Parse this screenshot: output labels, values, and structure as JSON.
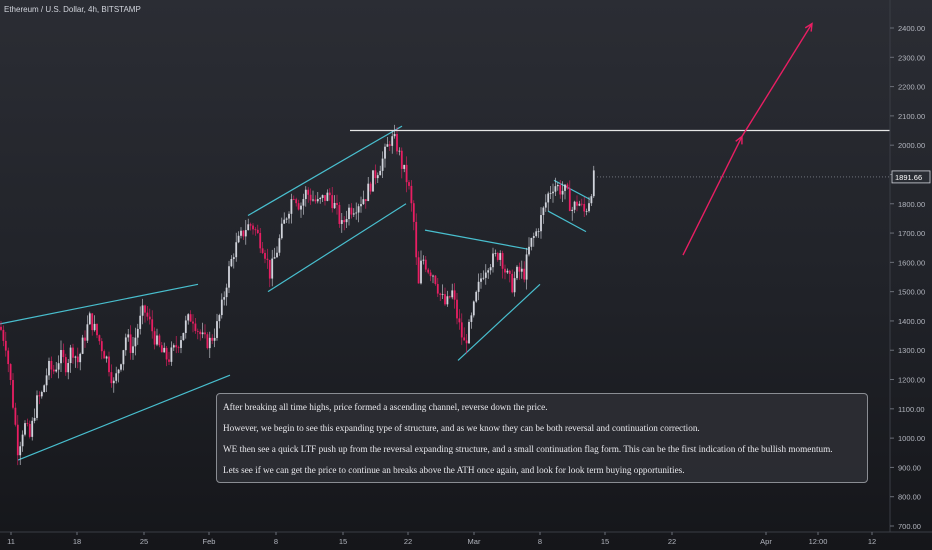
{
  "header": {
    "symbol": "Ethereum / U.S. Dollar, 4h, BITSTAMP"
  },
  "note": {
    "lines": [
      "After breaking all time highs, price formed a ascending channel, reverse down the price.",
      "However, we begin to see this expanding type of structure, and as we know they can be both reversal and continuation correction.",
      "WE then see a quick LTF push up from the reversal expanding structure, and a small continuation flag form. This can be the first indication of the bullish momentum.",
      "Lets see if we can get the price to continue an breaks above the ATH once again, and look for look term buying opportunities."
    ]
  },
  "colors": {
    "up": "#d1d4dc",
    "down": "#e91e63",
    "trendline": "#4dd0e1",
    "resistance": "#e6e6e6",
    "arrow": "#e91e63",
    "axis_text": "#b2b5be"
  },
  "chart_data": {
    "type": "candlestick",
    "title": "Ethereum / U.S. Dollar, 4h, BITSTAMP",
    "y_ticks": [
      "2400.00",
      "2300.00",
      "2200.00",
      "2100.00",
      "2000.00",
      "1900.00",
      "1800.00",
      "1700.00",
      "1600.00",
      "1500.00",
      "1400.00",
      "1300.00",
      "1200.00",
      "1100.00",
      "1000.00",
      "900.00",
      "800.00",
      "700.00"
    ],
    "x_ticks": [
      "11",
      "18",
      "25",
      "Feb",
      "8",
      "15",
      "22",
      "Mar",
      "8",
      "15",
      "22",
      "Apr",
      "12:00",
      "12"
    ],
    "ylim": [
      690,
      2460
    ],
    "last_price": "1891.66",
    "price_path": [
      [
        0,
        1380
      ],
      [
        6,
        1320
      ],
      [
        12,
        1150
      ],
      [
        18,
        960
      ],
      [
        24,
        1050
      ],
      [
        30,
        1000
      ],
      [
        36,
        1120
      ],
      [
        42,
        1150
      ],
      [
        48,
        1240
      ],
      [
        54,
        1230
      ],
      [
        60,
        1280
      ],
      [
        66,
        1250
      ],
      [
        72,
        1310
      ],
      [
        78,
        1260
      ],
      [
        84,
        1340
      ],
      [
        90,
        1410
      ],
      [
        96,
        1360
      ],
      [
        102,
        1310
      ],
      [
        108,
        1260
      ],
      [
        114,
        1180
      ],
      [
        120,
        1260
      ],
      [
        126,
        1350
      ],
      [
        132,
        1300
      ],
      [
        138,
        1380
      ],
      [
        144,
        1440
      ],
      [
        150,
        1390
      ],
      [
        156,
        1330
      ],
      [
        162,
        1290
      ],
      [
        168,
        1270
      ],
      [
        174,
        1300
      ],
      [
        180,
        1340
      ],
      [
        186,
        1390
      ],
      [
        192,
        1420
      ],
      [
        198,
        1370
      ],
      [
        204,
        1330
      ],
      [
        210,
        1330
      ],
      [
        216,
        1370
      ],
      [
        222,
        1450
      ],
      [
        228,
        1560
      ],
      [
        234,
        1640
      ],
      [
        240,
        1680
      ],
      [
        246,
        1720
      ],
      [
        252,
        1730
      ],
      [
        258,
        1690
      ],
      [
        264,
        1650
      ],
      [
        270,
        1560
      ],
      [
        276,
        1630
      ],
      [
        282,
        1710
      ],
      [
        288,
        1780
      ],
      [
        294,
        1840
      ],
      [
        300,
        1790
      ],
      [
        306,
        1840
      ],
      [
        312,
        1820
      ],
      [
        318,
        1800
      ],
      [
        324,
        1820
      ],
      [
        330,
        1830
      ],
      [
        336,
        1780
      ],
      [
        342,
        1720
      ],
      [
        348,
        1780
      ],
      [
        354,
        1790
      ],
      [
        360,
        1810
      ],
      [
        366,
        1830
      ],
      [
        372,
        1880
      ],
      [
        378,
        1920
      ],
      [
        384,
        1960
      ],
      [
        390,
        2020
      ],
      [
        396,
        2010
      ],
      [
        402,
        1930
      ],
      [
        408,
        1870
      ],
      [
        414,
        1730
      ],
      [
        418,
        1500
      ],
      [
        422,
        1620
      ],
      [
        428,
        1580
      ],
      [
        434,
        1560
      ],
      [
        440,
        1490
      ],
      [
        446,
        1450
      ],
      [
        452,
        1500
      ],
      [
        458,
        1400
      ],
      [
        464,
        1320
      ],
      [
        470,
        1380
      ],
      [
        476,
        1480
      ],
      [
        482,
        1560
      ],
      [
        488,
        1600
      ],
      [
        494,
        1610
      ],
      [
        500,
        1640
      ],
      [
        506,
        1560
      ],
      [
        512,
        1520
      ],
      [
        518,
        1570
      ],
      [
        524,
        1560
      ],
      [
        530,
        1660
      ],
      [
        536,
        1700
      ],
      [
        542,
        1760
      ],
      [
        548,
        1830
      ],
      [
        554,
        1870
      ],
      [
        560,
        1850
      ],
      [
        566,
        1840
      ],
      [
        572,
        1780
      ],
      [
        578,
        1810
      ],
      [
        584,
        1770
      ],
      [
        588,
        1800
      ],
      [
        594,
        1891.66
      ]
    ],
    "trendlines": [
      [
        [
          0,
          1390
        ],
        [
          198,
          1525
        ]
      ],
      [
        [
          18,
          925
        ],
        [
          230,
          1215
        ]
      ],
      [
        [
          248,
          1760
        ],
        [
          402,
          2065
        ]
      ],
      [
        [
          268,
          1500
        ],
        [
          406,
          1800
        ]
      ],
      [
        [
          425,
          1710
        ],
        [
          528,
          1645
        ]
      ],
      [
        [
          458,
          1265
        ],
        [
          540,
          1525
        ]
      ],
      [
        [
          554,
          1880
        ],
        [
          590,
          1815
        ]
      ],
      [
        [
          548,
          1775
        ],
        [
          586,
          1705
        ]
      ]
    ],
    "resistance": [
      [
        350,
        2050
      ],
      [
        890,
        2050
      ]
    ],
    "arrows": [
      [
        [
          683,
          1625
        ],
        [
          742,
          2030
        ]
      ],
      [
        [
          742,
          2030
        ],
        [
          812,
          2415
        ]
      ]
    ]
  }
}
